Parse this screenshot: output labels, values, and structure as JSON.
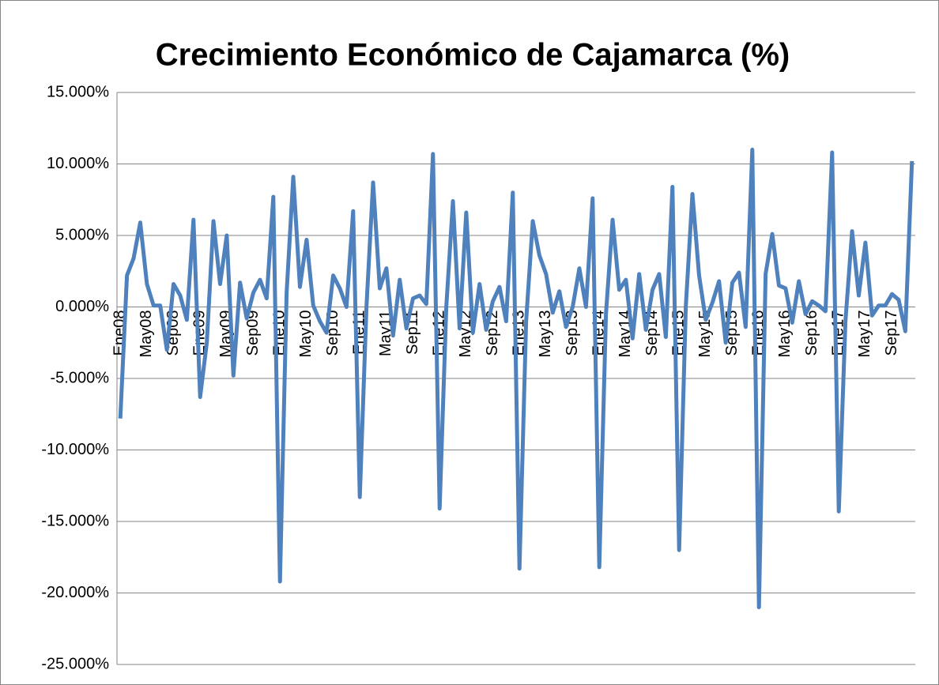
{
  "chart_data": {
    "type": "line",
    "title": "Crecimiento Económico de Cajamarca  (%)",
    "categories": [
      "Ene08",
      null,
      null,
      null,
      "May08",
      null,
      null,
      null,
      "Sep08",
      null,
      null,
      null,
      "Ene09",
      null,
      null,
      null,
      "May09",
      null,
      null,
      null,
      "Sep09",
      null,
      null,
      null,
      "Ene10",
      null,
      null,
      null,
      "May10",
      null,
      null,
      null,
      "Sep10",
      null,
      null,
      null,
      "Ene11",
      null,
      null,
      null,
      "May11",
      null,
      null,
      null,
      "Sep11",
      null,
      null,
      null,
      "Ene12",
      null,
      null,
      null,
      "May12",
      null,
      null,
      null,
      "Sep12",
      null,
      null,
      null,
      "Ene13",
      null,
      null,
      null,
      "May13",
      null,
      null,
      null,
      "Sep13",
      null,
      null,
      null,
      "Ene14",
      null,
      null,
      null,
      "May14",
      null,
      null,
      null,
      "Sep14",
      null,
      null,
      null,
      "Ene15",
      null,
      null,
      null,
      "May15",
      null,
      null,
      null,
      "Sep15",
      null,
      null,
      null,
      "Ene16",
      null,
      null,
      null,
      "May16",
      null,
      null,
      null,
      "Sep16",
      null,
      null,
      null,
      "Ene17",
      null,
      null,
      null,
      "May17",
      null,
      null,
      null,
      "Sep17",
      null,
      null,
      null
    ],
    "values": [
      -7.8,
      2.2,
      3.4,
      5.9,
      1.6,
      0.1,
      0.1,
      -3.0,
      1.6,
      0.8,
      -0.9,
      6.1,
      -6.3,
      -2.5,
      6.0,
      1.6,
      5.0,
      -4.8,
      1.7,
      -0.8,
      1.0,
      1.9,
      0.6,
      7.7,
      -19.2,
      1.0,
      9.1,
      1.4,
      4.7,
      0.1,
      -1.0,
      -1.8,
      2.2,
      1.3,
      0.0,
      6.7,
      -13.3,
      0.0,
      8.7,
      1.3,
      2.7,
      -2.0,
      1.9,
      -1.5,
      0.6,
      0.8,
      0.2,
      10.7,
      -14.1,
      0.0,
      7.4,
      -1.5,
      6.6,
      -1.8,
      1.6,
      -1.6,
      0.4,
      1.4,
      -1.0,
      8.0,
      -18.3,
      -1.0,
      6.0,
      3.6,
      2.3,
      -0.4,
      1.1,
      -1.4,
      0.0,
      2.7,
      0.0,
      7.6,
      -18.2,
      -0.5,
      6.1,
      1.2,
      1.9,
      -2.2,
      2.3,
      -1.6,
      1.2,
      2.3,
      -2.1,
      8.4,
      -17.0,
      0.0,
      7.9,
      2.2,
      -0.9,
      0.3,
      1.8,
      -2.5,
      1.7,
      2.4,
      -1.4,
      11.0,
      -21.0,
      2.3,
      5.1,
      1.5,
      1.3,
      -1.1,
      1.8,
      -0.5,
      0.4,
      0.1,
      -0.3,
      10.8,
      -14.3,
      -1.0,
      5.3,
      0.8,
      4.5,
      -0.6,
      0.1,
      0.1,
      0.9,
      0.5,
      -1.7,
      10.2
    ],
    "color": "#4f81bd",
    "ylim": [
      -25,
      15
    ],
    "yticks": [
      {
        "value": -25,
        "label": "-25.000%"
      },
      {
        "value": -20,
        "label": "-20.000%"
      },
      {
        "value": -15,
        "label": "-15.000%"
      },
      {
        "value": -10,
        "label": "-10.000%"
      },
      {
        "value": -5,
        "label": "-5.000%"
      },
      {
        "value": 0,
        "label": "0.000%"
      },
      {
        "value": 5,
        "label": "5.000%"
      },
      {
        "value": 10,
        "label": "10.000%"
      },
      {
        "value": 15,
        "label": "15.000%"
      }
    ],
    "grid": true
  }
}
